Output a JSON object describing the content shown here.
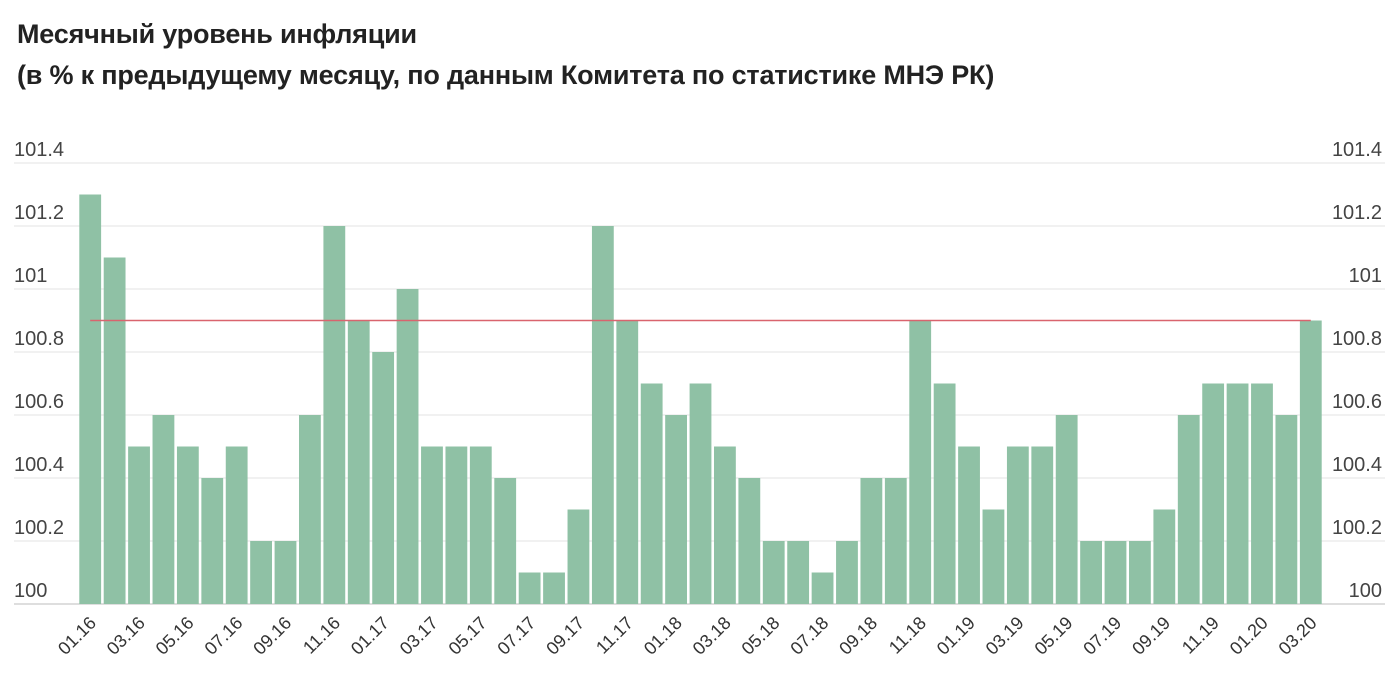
{
  "header": {
    "title_line1": "Месячный уровень инфляции",
    "title_line2": "(в % к предыдущему месяцу, по данным Комитета по статистике МНЭ РК)"
  },
  "chart_data": {
    "type": "bar",
    "title": "Месячный уровень инфляции",
    "subtitle": "(в % к предыдущему месяцу, по данным Комитета по статистике МНЭ РК)",
    "xlabel": "",
    "ylabel": "",
    "ylim": [
      100,
      101.4
    ],
    "yticks": [
      "100",
      "100.2",
      "100.4",
      "100.6",
      "100.8",
      "101",
      "101.2",
      "101.4"
    ],
    "grid": true,
    "legend": "none",
    "bar_color": "#8fc1a5",
    "reference_line": {
      "value": 100.9,
      "color": "#d9646e"
    },
    "categories": [
      "01.16",
      "02.16",
      "03.16",
      "04.16",
      "05.16",
      "06.16",
      "07.16",
      "08.16",
      "09.16",
      "10.16",
      "11.16",
      "12.16",
      "01.17",
      "02.17",
      "03.17",
      "04.17",
      "05.17",
      "06.17",
      "07.17",
      "08.17",
      "09.17",
      "10.17",
      "11.17",
      "12.17",
      "01.18",
      "02.18",
      "03.18",
      "04.18",
      "05.18",
      "06.18",
      "07.18",
      "08.18",
      "09.18",
      "10.18",
      "11.18",
      "12.18",
      "01.19",
      "02.19",
      "03.19",
      "04.19",
      "05.19",
      "06.19",
      "07.19",
      "08.19",
      "09.19",
      "10.19",
      "11.19",
      "12.19",
      "01.20",
      "02.20",
      "03.20"
    ],
    "xtick_labels": [
      "01.16",
      "03.16",
      "05.16",
      "07.16",
      "09.16",
      "11.16",
      "01.17",
      "03.17",
      "05.17",
      "07.17",
      "09.17",
      "11.17",
      "01.18",
      "03.18",
      "05.18",
      "07.18",
      "09.18",
      "11.18",
      "01.19",
      "03.19",
      "05.19",
      "07.19",
      "09.19",
      "11.19",
      "01.20",
      "03.20"
    ],
    "values": [
      101.3,
      101.1,
      100.5,
      100.6,
      100.5,
      100.4,
      100.5,
      100.2,
      100.2,
      100.6,
      101.2,
      100.9,
      100.8,
      101.0,
      100.5,
      100.5,
      100.5,
      100.4,
      100.1,
      100.1,
      100.3,
      101.2,
      100.9,
      100.7,
      100.6,
      100.7,
      100.5,
      100.4,
      100.2,
      100.2,
      100.1,
      100.2,
      100.4,
      100.4,
      100.9,
      100.7,
      100.5,
      100.3,
      100.5,
      100.5,
      100.6,
      100.2,
      100.2,
      100.2,
      100.3,
      100.6,
      100.7,
      100.7,
      100.7,
      100.6,
      100.9
    ]
  }
}
